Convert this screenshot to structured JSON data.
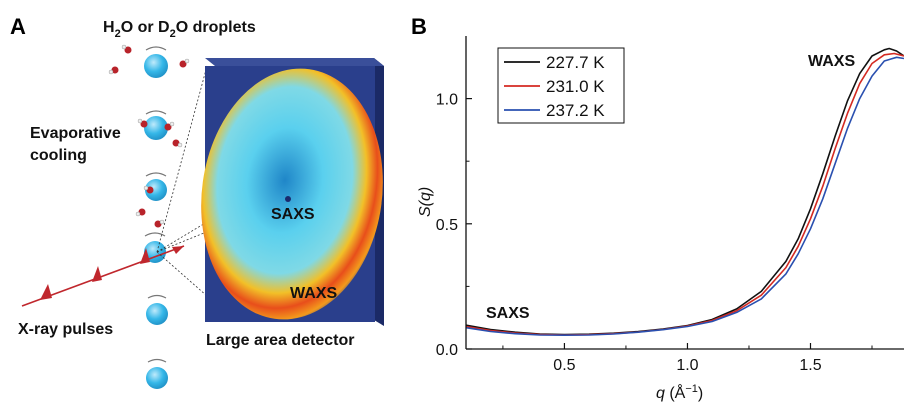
{
  "panel_a": {
    "letter": "A",
    "label_droplets_main": "H",
    "label_droplets_sub1": "2",
    "label_droplets_mid": "O or D",
    "label_droplets_sub2": "2",
    "label_droplets_end": "O droplets",
    "label_evap_line1": "Evaporative",
    "label_evap_line2": "cooling",
    "label_xray": "X-ray pulses",
    "label_detector": "Large area detector",
    "label_saxs": "SAXS",
    "label_waxs": "WAXS",
    "colors": {
      "droplet": "#35b7e8",
      "pulse": "#c0272d",
      "detector_bg": "#2a3f8c",
      "ring": "#e84e1b"
    },
    "icons": [
      "droplet-icon",
      "molecule-icon",
      "xray-pulse-icon",
      "detector-icon"
    ]
  },
  "panel_b": {
    "letter": "B",
    "label_saxs": "SAXS",
    "label_waxs": "WAXS",
    "ylabel_main": "S(q)",
    "xlabel_main": "q",
    "xlabel_unit": " (Å",
    "xlabel_exp": "−1",
    "xlabel_close": ")"
  },
  "chart_data": {
    "type": "line",
    "title": "",
    "xlabel": "q (Å−1)",
    "ylabel": "S(q)",
    "xlim": [
      0.1,
      1.88
    ],
    "ylim": [
      0.0,
      1.25
    ],
    "xticks": [
      0.5,
      1.0,
      1.5
    ],
    "xtick_labels": [
      "0.5",
      "1.0",
      "1.5"
    ],
    "yticks": [
      0.0,
      0.5,
      1.0
    ],
    "ytick_labels": [
      "0.0",
      "0.5",
      "1.0"
    ],
    "grid": false,
    "legend_position": "top-left",
    "series": [
      {
        "name": "227.7 K",
        "color": "#111111",
        "x": [
          0.1,
          0.2,
          0.3,
          0.4,
          0.5,
          0.6,
          0.7,
          0.8,
          0.9,
          1.0,
          1.1,
          1.2,
          1.3,
          1.4,
          1.45,
          1.5,
          1.55,
          1.6,
          1.65,
          1.7,
          1.75,
          1.8,
          1.82,
          1.85,
          1.88
        ],
        "y": [
          0.095,
          0.078,
          0.067,
          0.06,
          0.058,
          0.059,
          0.063,
          0.07,
          0.08,
          0.094,
          0.118,
          0.16,
          0.23,
          0.35,
          0.44,
          0.56,
          0.7,
          0.85,
          0.99,
          1.1,
          1.17,
          1.195,
          1.2,
          1.19,
          1.17
        ]
      },
      {
        "name": "231.0 K",
        "color": "#d42a22",
        "x": [
          0.1,
          0.2,
          0.3,
          0.4,
          0.5,
          0.6,
          0.7,
          0.8,
          0.9,
          1.0,
          1.1,
          1.2,
          1.3,
          1.4,
          1.45,
          1.5,
          1.55,
          1.6,
          1.65,
          1.7,
          1.75,
          1.8,
          1.84,
          1.88
        ],
        "y": [
          0.09,
          0.074,
          0.064,
          0.058,
          0.056,
          0.057,
          0.061,
          0.068,
          0.078,
          0.092,
          0.114,
          0.153,
          0.215,
          0.325,
          0.41,
          0.52,
          0.65,
          0.8,
          0.94,
          1.06,
          1.14,
          1.175,
          1.18,
          1.17
        ]
      },
      {
        "name": "237.2 K",
        "color": "#2a50b0",
        "x": [
          0.1,
          0.2,
          0.3,
          0.4,
          0.5,
          0.6,
          0.7,
          0.8,
          0.9,
          1.0,
          1.1,
          1.2,
          1.3,
          1.4,
          1.45,
          1.5,
          1.55,
          1.6,
          1.65,
          1.7,
          1.75,
          1.8,
          1.85,
          1.88
        ],
        "y": [
          0.085,
          0.07,
          0.061,
          0.056,
          0.055,
          0.056,
          0.06,
          0.067,
          0.077,
          0.09,
          0.11,
          0.146,
          0.2,
          0.3,
          0.38,
          0.48,
          0.6,
          0.74,
          0.88,
          1.0,
          1.09,
          1.15,
          1.165,
          1.16
        ]
      }
    ]
  }
}
